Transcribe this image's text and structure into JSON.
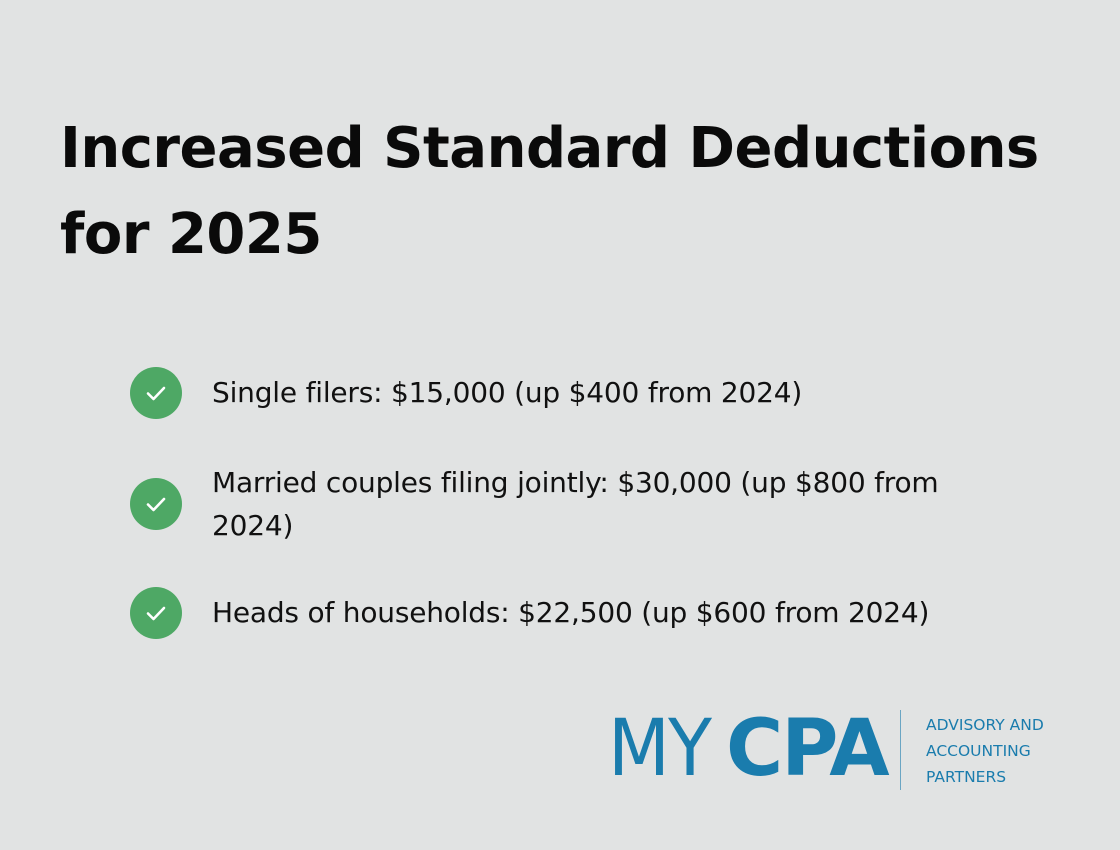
{
  "title": {
    "line1": "Increased Standard Deductions",
    "line2": "for 2025"
  },
  "items": [
    {
      "icon": "check-circle-icon",
      "text": "Single filers: $15,000 (up $400 from 2024)"
    },
    {
      "icon": "check-circle-icon",
      "text": "Married couples filing jointly: $30,000 (up $800 from 2024)"
    },
    {
      "icon": "check-circle-icon",
      "text": "Heads of households: $22,500 (up $600 from 2024)"
    }
  ],
  "logo": {
    "my": "MY",
    "cpa": "CPA",
    "tagline": [
      "ADVISORY AND",
      "ACCOUNTING",
      "PARTNERS"
    ]
  },
  "colors": {
    "background": "#e1e3e3",
    "check": "#4ea865",
    "brand": "#1a7cad",
    "text": "#0a0a0a"
  }
}
